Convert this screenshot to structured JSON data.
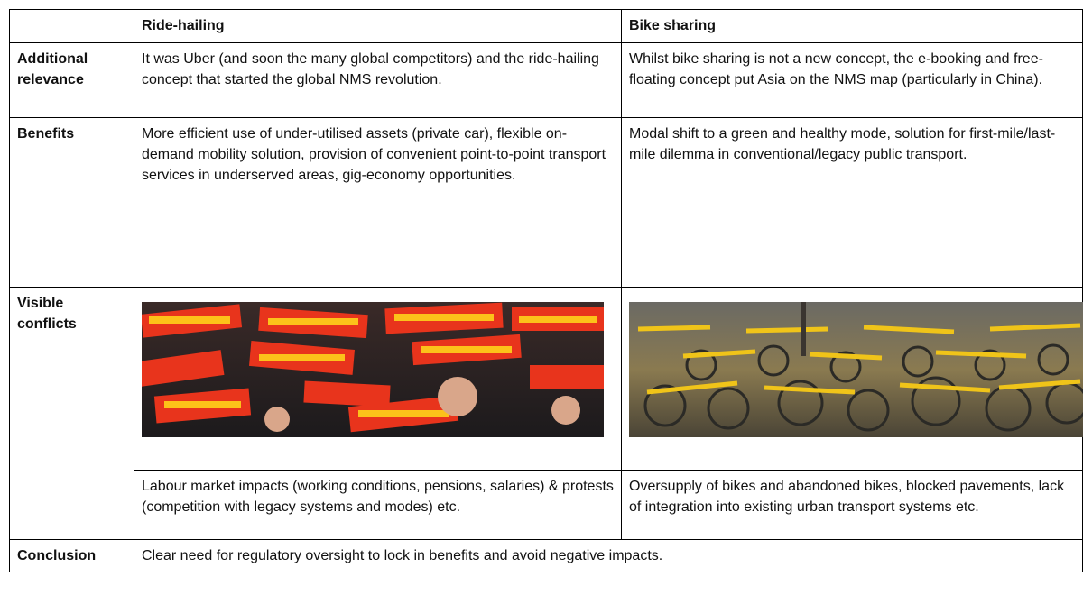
{
  "table": {
    "columns": [
      "Ride-hailing",
      "Bike sharing"
    ],
    "rows": [
      {
        "label": "Additional relevance",
        "cells": [
          "It was Uber (and soon the many global competitors) and the ride-hailing concept that started the global NMS revolution.",
          "Whilst bike sharing is not a new concept, the e-booking and free-floating concept put Asia on the NMS map (particularly in China)."
        ]
      },
      {
        "label": "Benefits",
        "cells": [
          "More efficient use of under-utilised assets (private car), flexible on-demand mobility solution, provision of convenient point-to-point transport services in underserved areas, gig-economy opportunities.",
          "Modal shift to a green and healthy mode, solution for first-mile/last-mile dilemma in conventional/legacy public transport."
        ]
      },
      {
        "label": "Visible conflicts",
        "cells": [
          "Labour market impacts (working conditions, pensions, salaries) & protests (competition with legacy systems and modes) etc.",
          "Oversupply of bikes and abandoned bikes, blocked pavements, lack of integration into existing urban transport systems etc."
        ]
      },
      {
        "label": "Conclusion",
        "text": "Clear need for regulatory oversight to lock in benefits and avoid negative impacts."
      }
    ]
  }
}
